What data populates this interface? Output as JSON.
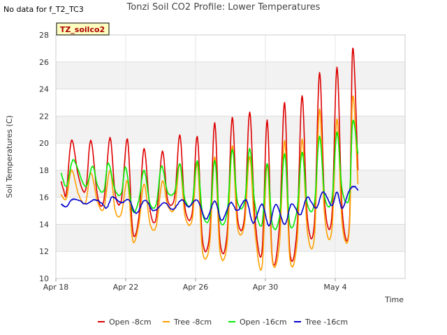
{
  "page": {
    "nodata_text": "No data for f_T2_TC3",
    "title": "Tonzi Soil CO2 Profile: Lower Temperatures",
    "badge": "TZ_soilco2"
  },
  "chart_data": {
    "type": "line",
    "title": "Tonzi Soil CO2 Profile: Lower Temperatures",
    "xlabel": "Time",
    "ylabel": "Soil Temperatures (C)",
    "xlim": [
      0,
      20.0
    ],
    "ylim": [
      10,
      28
    ],
    "x_ticks": [
      {
        "x": 0,
        "label": "Apr 18"
      },
      {
        "x": 4,
        "label": "Apr 22"
      },
      {
        "x": 8,
        "label": "Apr 26"
      },
      {
        "x": 12,
        "label": "Apr 30"
      },
      {
        "x": 16,
        "label": "May 4"
      }
    ],
    "y_ticks": [
      10,
      12,
      14,
      16,
      18,
      20,
      22,
      24,
      26,
      28
    ],
    "grid": true,
    "legend_position": "bottom",
    "series": [
      {
        "name": "Open -8cm",
        "color": "#dd0000",
        "x": [
          0.3,
          0.45,
          0.6,
          0.9,
          1.3,
          1.7,
          2.0,
          2.4,
          2.75,
          3.1,
          3.4,
          3.75,
          4.1,
          4.4,
          4.75,
          5.05,
          5.4,
          5.75,
          6.1,
          6.4,
          6.8,
          7.1,
          7.4,
          7.8,
          8.1,
          8.4,
          8.8,
          9.1,
          9.4,
          9.8,
          10.1,
          10.4,
          10.8,
          11.1,
          11.4,
          11.8,
          12.1,
          12.4,
          12.8,
          13.1,
          13.4,
          13.8,
          14.1,
          14.4,
          14.8,
          15.1,
          15.4,
          15.8,
          16.1,
          16.4,
          16.8,
          17.0,
          17.3
        ],
        "y": [
          17.2,
          16.5,
          16.3,
          20.2,
          17.5,
          16.5,
          20.2,
          16.0,
          15.8,
          20.4,
          16.2,
          15.8,
          20.3,
          13.5,
          14.5,
          19.6,
          15.0,
          14.5,
          19.4,
          15.8,
          16.0,
          20.6,
          15.2,
          14.8,
          20.5,
          12.8,
          13.2,
          21.5,
          12.7,
          13.2,
          21.9,
          14.5,
          14.5,
          22.3,
          14.5,
          11.9,
          21.7,
          11.4,
          13.8,
          23.0,
          12.0,
          13.5,
          23.5,
          14.5,
          14.0,
          25.2,
          15.5,
          14.5,
          25.6,
          15.0,
          13.8,
          27.0,
          18.0
        ]
      },
      {
        "name": "Tree -8cm",
        "color": "#ff9f00",
        "x": [
          0.3,
          0.6,
          0.9,
          1.3,
          1.7,
          2.0,
          2.4,
          2.75,
          3.1,
          3.4,
          3.75,
          4.1,
          4.4,
          4.75,
          5.05,
          5.4,
          5.75,
          6.1,
          6.4,
          6.8,
          7.1,
          7.4,
          7.8,
          8.1,
          8.4,
          8.8,
          9.1,
          9.4,
          9.8,
          10.1,
          10.4,
          10.8,
          11.1,
          11.4,
          11.8,
          12.1,
          12.4,
          12.8,
          13.1,
          13.4,
          13.8,
          14.1,
          14.4,
          14.8,
          15.1,
          15.4,
          15.8,
          16.1,
          16.4,
          16.8,
          17.0,
          17.3
        ],
        "y": [
          16.2,
          15.9,
          18.0,
          16.2,
          15.6,
          17.8,
          15.6,
          15.2,
          18.0,
          15.0,
          14.8,
          17.2,
          12.8,
          14.0,
          17.0,
          14.0,
          13.9,
          17.2,
          15.4,
          15.2,
          18.5,
          14.6,
          14.3,
          18.5,
          12.0,
          12.5,
          19.0,
          12.0,
          12.5,
          19.8,
          13.8,
          14.0,
          19.0,
          13.5,
          10.8,
          18.5,
          11.3,
          12.5,
          20.2,
          11.5,
          12.5,
          20.3,
          13.5,
          13.0,
          22.5,
          14.5,
          13.5,
          21.8,
          14.0,
          13.5,
          23.5,
          17.0
        ]
      },
      {
        "name": "Open -16cm",
        "color": "#00ee00",
        "x": [
          0.3,
          0.6,
          0.9,
          1.1,
          1.7,
          2.1,
          2.4,
          2.75,
          3.0,
          3.4,
          3.75,
          4.0,
          4.4,
          4.75,
          5.05,
          5.4,
          5.75,
          6.05,
          6.4,
          6.8,
          7.1,
          7.4,
          7.8,
          8.1,
          8.4,
          8.8,
          9.1,
          9.4,
          9.8,
          10.1,
          10.4,
          10.8,
          11.1,
          11.4,
          11.8,
          12.1,
          12.4,
          12.8,
          13.1,
          13.4,
          13.8,
          14.1,
          14.4,
          14.8,
          15.1,
          15.4,
          15.8,
          16.1,
          16.4,
          16.8,
          17.0,
          17.3
        ],
        "y": [
          17.8,
          16.8,
          18.5,
          18.6,
          16.8,
          18.3,
          16.8,
          16.5,
          18.5,
          16.5,
          16.3,
          18.2,
          15.0,
          15.8,
          18.0,
          15.5,
          15.5,
          18.3,
          16.4,
          16.4,
          18.5,
          15.8,
          15.6,
          18.7,
          14.8,
          14.5,
          18.7,
          14.3,
          14.8,
          19.5,
          15.7,
          15.6,
          19.6,
          15.5,
          14.0,
          18.5,
          14.0,
          14.5,
          19.2,
          14.0,
          15.0,
          19.3,
          15.5,
          15.5,
          20.5,
          16.0,
          15.8,
          20.8,
          16.5,
          16.0,
          21.6,
          19.2
        ]
      },
      {
        "name": "Tree -16cm",
        "color": "#0000cc",
        "x": [
          0.3,
          0.6,
          0.9,
          1.3,
          1.7,
          2.2,
          2.6,
          2.9,
          3.2,
          3.5,
          3.8,
          4.2,
          4.6,
          5.1,
          5.6,
          6.2,
          6.7,
          7.2,
          7.6,
          8.1,
          8.6,
          9.1,
          9.5,
          10.0,
          10.4,
          10.9,
          11.3,
          11.8,
          12.2,
          12.6,
          13.1,
          13.5,
          14.0,
          14.4,
          14.9,
          15.3,
          15.8,
          16.1,
          16.4,
          16.8,
          17.1,
          17.3
        ],
        "y": [
          15.5,
          15.3,
          15.8,
          15.8,
          15.5,
          15.8,
          15.6,
          15.2,
          16.0,
          15.8,
          15.6,
          15.8,
          14.8,
          15.8,
          15.0,
          15.6,
          15.1,
          15.8,
          15.3,
          15.8,
          14.4,
          15.7,
          14.3,
          15.6,
          15.0,
          15.8,
          14.1,
          15.5,
          13.9,
          15.5,
          14.0,
          15.5,
          14.7,
          16.0,
          15.2,
          16.4,
          15.4,
          16.4,
          15.2,
          16.5,
          16.8,
          16.5
        ]
      }
    ]
  }
}
